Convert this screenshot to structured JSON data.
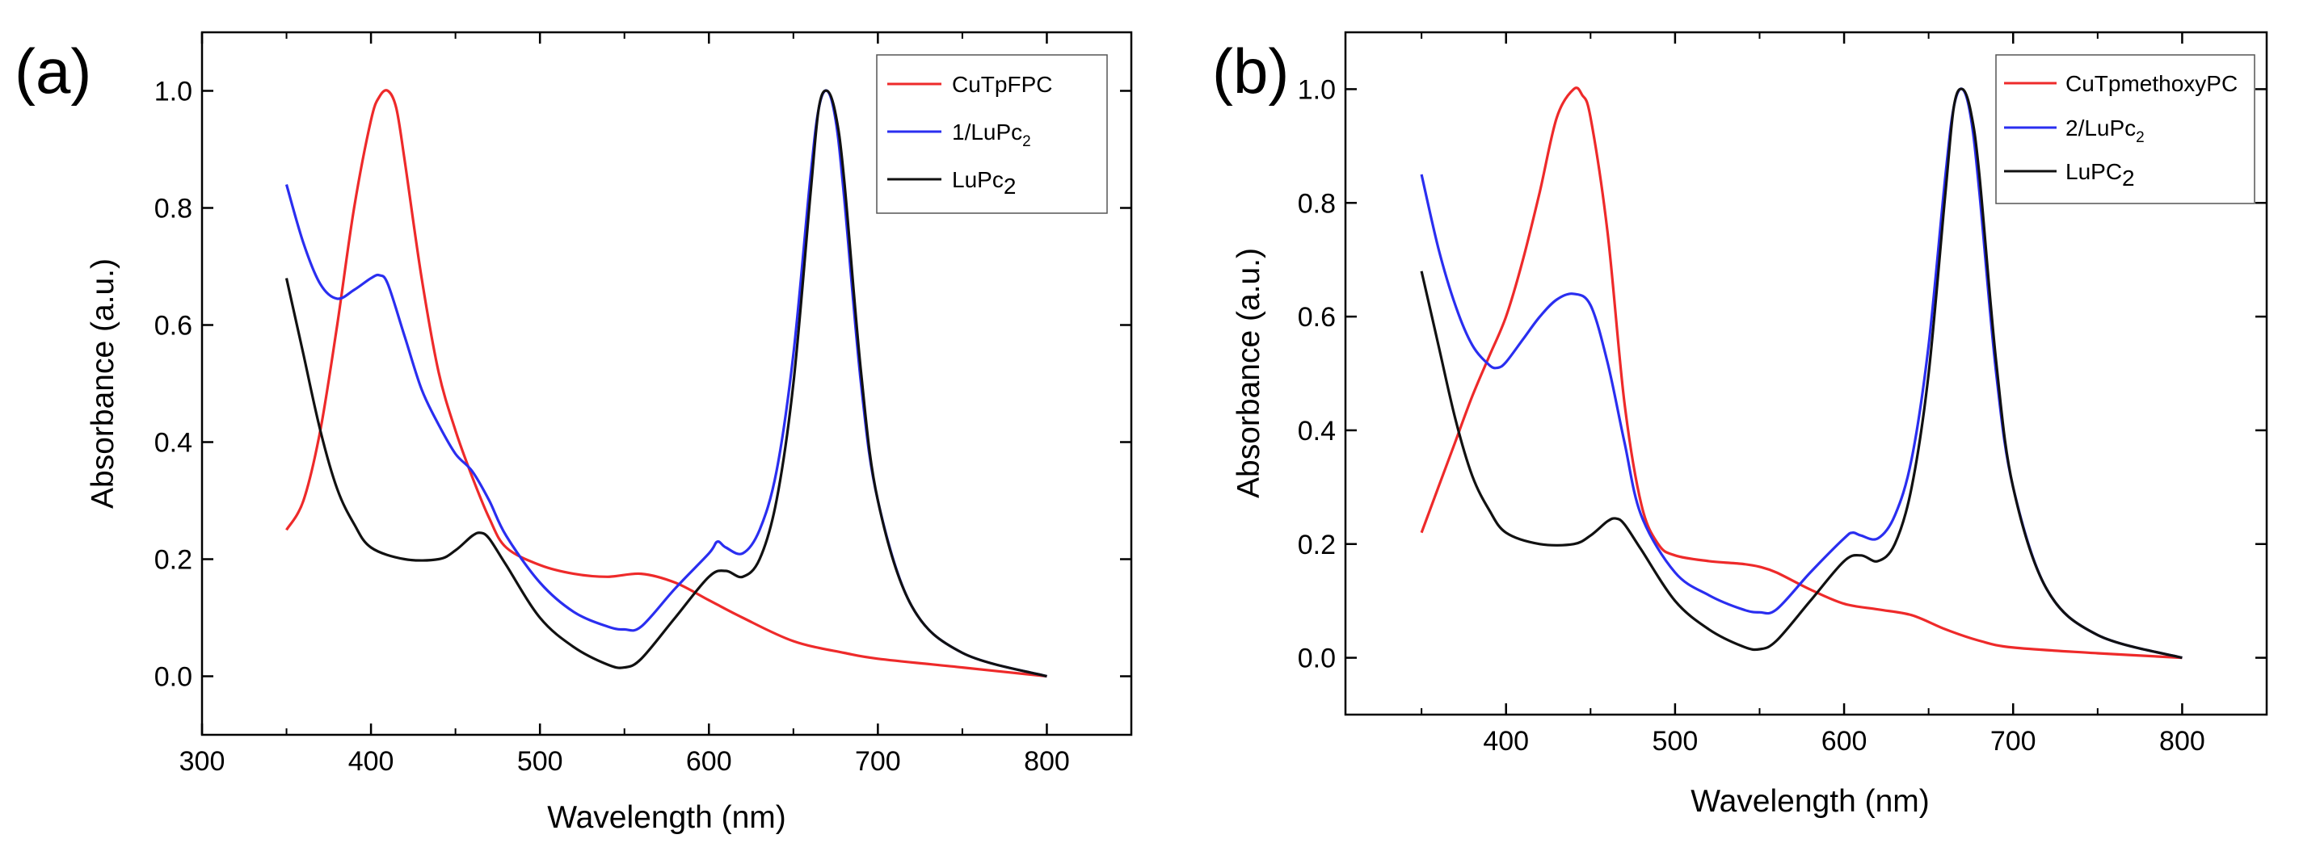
{
  "colors": {
    "red": "#ee2a2a",
    "blue": "#2a2ef0",
    "black": "#111111"
  },
  "chart_data": [
    {
      "type": "line",
      "panel_label": "(a)",
      "xlabel": "Wavelength (nm)",
      "ylabel": "Absorbance (a.u.)",
      "xlim": [
        300,
        850
      ],
      "ylim": [
        -0.1,
        1.1
      ],
      "xticks": [
        300,
        400,
        500,
        600,
        700,
        800
      ],
      "xtick_labels": [
        "300",
        "400",
        "500",
        "600",
        "700",
        "800"
      ],
      "yticks": [
        0.0,
        0.2,
        0.4,
        0.6,
        0.8,
        1.0
      ],
      "ytick_labels": [
        "0.0",
        "0.2",
        "0.4",
        "0.6",
        "0.8",
        "1.0"
      ],
      "legend_position": "top-right",
      "series": [
        {
          "name": "CuTpFPC",
          "label_main": "CuTpFPC",
          "label_sub": "",
          "label_sub_big": "",
          "color": "red",
          "x": [
            350,
            360,
            370,
            380,
            390,
            400,
            405,
            410,
            415,
            420,
            430,
            440,
            450,
            460,
            470,
            480,
            500,
            520,
            540,
            560,
            580,
            600,
            620,
            650,
            680,
            700,
            750,
            800
          ],
          "y": [
            0.25,
            0.3,
            0.42,
            0.6,
            0.8,
            0.95,
            0.99,
            1.0,
            0.97,
            0.88,
            0.68,
            0.52,
            0.42,
            0.34,
            0.27,
            0.22,
            0.19,
            0.175,
            0.17,
            0.175,
            0.16,
            0.13,
            0.1,
            0.06,
            0.04,
            0.03,
            0.015,
            0.0
          ]
        },
        {
          "name": "1/LuPc2",
          "label_main": "1/LuPc",
          "label_sub": "2",
          "label_sub_big": "",
          "color": "blue",
          "x": [
            350,
            360,
            370,
            380,
            390,
            400,
            405,
            410,
            420,
            430,
            440,
            450,
            460,
            470,
            480,
            500,
            520,
            540,
            550,
            560,
            580,
            600,
            605,
            610,
            620,
            630,
            640,
            650,
            660,
            665,
            670,
            675,
            680,
            690,
            700,
            720,
            750,
            800
          ],
          "y": [
            0.84,
            0.74,
            0.67,
            0.645,
            0.66,
            0.68,
            0.685,
            0.67,
            0.58,
            0.49,
            0.43,
            0.38,
            0.35,
            0.3,
            0.24,
            0.16,
            0.11,
            0.085,
            0.08,
            0.085,
            0.15,
            0.21,
            0.23,
            0.22,
            0.21,
            0.25,
            0.35,
            0.55,
            0.85,
            0.97,
            1.0,
            0.95,
            0.82,
            0.5,
            0.3,
            0.12,
            0.04,
            0.0
          ]
        },
        {
          "name": "LuPc2",
          "label_main": "LuPc",
          "label_sub": "",
          "label_sub_big": "2",
          "color": "black",
          "x": [
            350,
            360,
            370,
            380,
            390,
            400,
            420,
            440,
            450,
            460,
            465,
            470,
            480,
            500,
            520,
            540,
            550,
            560,
            580,
            600,
            610,
            620,
            630,
            640,
            650,
            660,
            665,
            670,
            675,
            680,
            690,
            700,
            720,
            750,
            800
          ],
          "y": [
            0.68,
            0.55,
            0.42,
            0.32,
            0.26,
            0.22,
            0.2,
            0.2,
            0.215,
            0.24,
            0.245,
            0.235,
            0.19,
            0.1,
            0.05,
            0.02,
            0.015,
            0.03,
            0.1,
            0.17,
            0.18,
            0.17,
            0.2,
            0.3,
            0.5,
            0.82,
            0.97,
            1.0,
            0.96,
            0.85,
            0.52,
            0.3,
            0.12,
            0.04,
            0.0
          ]
        }
      ]
    },
    {
      "type": "line",
      "panel_label": "(b)",
      "xlabel": "Wavelength (nm)",
      "ylabel": "Absorbance (a.u.)",
      "xlim": [
        305,
        850
      ],
      "ylim": [
        -0.1,
        1.1
      ],
      "xticks": [
        400,
        500,
        600,
        700,
        800
      ],
      "xtick_labels": [
        "400",
        "500",
        "600",
        "700",
        "800"
      ],
      "yticks": [
        0.0,
        0.2,
        0.4,
        0.6,
        0.8,
        1.0
      ],
      "ytick_labels": [
        "0.0",
        "0.2",
        "0.4",
        "0.6",
        "0.8",
        "1.0"
      ],
      "legend_position": "top-right",
      "series": [
        {
          "name": "CuTpmethoxyPC",
          "label_main": "CuTpmethoxyPC",
          "label_sub": "",
          "label_sub_big": "",
          "color": "red",
          "x": [
            350,
            360,
            370,
            380,
            390,
            400,
            410,
            420,
            430,
            440,
            445,
            450,
            460,
            470,
            480,
            490,
            500,
            520,
            540,
            550,
            560,
            580,
            600,
            620,
            640,
            660,
            680,
            700,
            750,
            800
          ],
          "y": [
            0.22,
            0.3,
            0.38,
            0.46,
            0.53,
            0.6,
            0.7,
            0.82,
            0.95,
            1.0,
            0.99,
            0.95,
            0.75,
            0.45,
            0.27,
            0.2,
            0.18,
            0.17,
            0.165,
            0.16,
            0.15,
            0.12,
            0.095,
            0.085,
            0.075,
            0.05,
            0.03,
            0.018,
            0.008,
            0.0
          ]
        },
        {
          "name": "2/LuPc2",
          "label_main": "2/LuPc",
          "label_sub": "2",
          "label_sub_big": "",
          "color": "blue",
          "x": [
            350,
            360,
            370,
            380,
            390,
            395,
            400,
            410,
            420,
            430,
            440,
            450,
            460,
            470,
            480,
            500,
            520,
            540,
            550,
            560,
            580,
            600,
            605,
            610,
            620,
            630,
            640,
            650,
            660,
            665,
            670,
            675,
            680,
            690,
            700,
            720,
            750,
            800
          ],
          "y": [
            0.85,
            0.72,
            0.62,
            0.55,
            0.515,
            0.51,
            0.52,
            0.56,
            0.6,
            0.63,
            0.64,
            0.62,
            0.52,
            0.38,
            0.25,
            0.15,
            0.11,
            0.085,
            0.08,
            0.085,
            0.15,
            0.21,
            0.22,
            0.215,
            0.21,
            0.25,
            0.35,
            0.55,
            0.85,
            0.97,
            1.0,
            0.95,
            0.82,
            0.5,
            0.3,
            0.12,
            0.04,
            0.0
          ]
        },
        {
          "name": "LuPC2",
          "label_main": "LuPC",
          "label_sub": "",
          "label_sub_big": "2",
          "color": "black",
          "x": [
            350,
            360,
            370,
            380,
            390,
            400,
            420,
            440,
            450,
            460,
            465,
            470,
            480,
            500,
            520,
            540,
            550,
            560,
            580,
            600,
            610,
            620,
            630,
            640,
            650,
            660,
            665,
            670,
            675,
            680,
            690,
            700,
            720,
            750,
            800
          ],
          "y": [
            0.68,
            0.55,
            0.42,
            0.32,
            0.26,
            0.22,
            0.2,
            0.2,
            0.215,
            0.24,
            0.245,
            0.235,
            0.19,
            0.1,
            0.05,
            0.02,
            0.015,
            0.03,
            0.1,
            0.17,
            0.18,
            0.17,
            0.2,
            0.3,
            0.5,
            0.82,
            0.97,
            1.0,
            0.96,
            0.85,
            0.52,
            0.3,
            0.12,
            0.04,
            0.0
          ]
        }
      ]
    }
  ]
}
